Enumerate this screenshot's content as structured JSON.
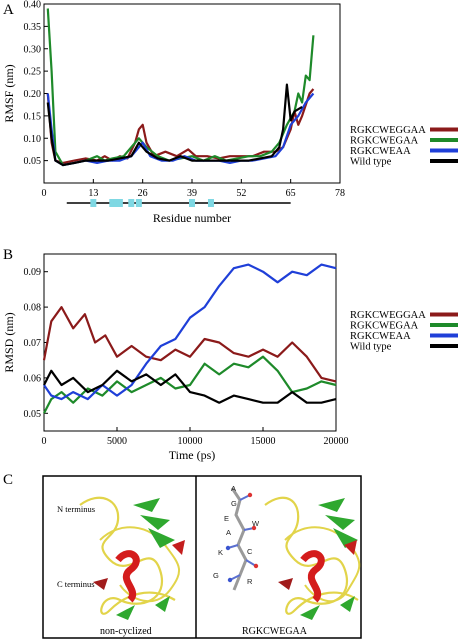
{
  "panels": {
    "a_letter": "A",
    "b_letter": "B",
    "c_letter": "C"
  },
  "colors": {
    "RGKCWEGGAA": "#8b1a1a",
    "RGKCWEGAA": "#1e8a2a",
    "RGKCWEAA": "#1f3fd8",
    "Wild type": "#000000",
    "secondary_marker": "#7fd8e3"
  },
  "chart_data": [
    {
      "type": "line",
      "panel": "A",
      "ylabel": "RMSF (nm)",
      "xlabel": "Residue number",
      "xlim": [
        0,
        78
      ],
      "ylim": [
        0,
        0.4
      ],
      "xticks": [
        "0",
        "13",
        "26",
        "39",
        "52",
        "65",
        "78"
      ],
      "yticks": [
        "0.05",
        "0.10",
        "0.15",
        "0.20",
        "0.25",
        "0.30",
        "0.35",
        "0.40"
      ],
      "legend_placement": "right",
      "series": [
        {
          "name": "RGKCWEGGAA",
          "color": "#8b1a1a",
          "points": [
            [
              1,
              0.2
            ],
            [
              2,
              0.09
            ],
            [
              3,
              0.05
            ],
            [
              5,
              0.045
            ],
            [
              8,
              0.05
            ],
            [
              11,
              0.055
            ],
            [
              14,
              0.05
            ],
            [
              16,
              0.06
            ],
            [
              18,
              0.05
            ],
            [
              20,
              0.06
            ],
            [
              22,
              0.055
            ],
            [
              24,
              0.09
            ],
            [
              25,
              0.12
            ],
            [
              26,
              0.13
            ],
            [
              27,
              0.09
            ],
            [
              29,
              0.06
            ],
            [
              32,
              0.07
            ],
            [
              35,
              0.06
            ],
            [
              38,
              0.075
            ],
            [
              40,
              0.06
            ],
            [
              43,
              0.06
            ],
            [
              46,
              0.055
            ],
            [
              49,
              0.06
            ],
            [
              52,
              0.06
            ],
            [
              55,
              0.06
            ],
            [
              58,
              0.07
            ],
            [
              61,
              0.07
            ],
            [
              63,
              0.08
            ],
            [
              65,
              0.12
            ],
            [
              66,
              0.16
            ],
            [
              67,
              0.13
            ],
            [
              68,
              0.15
            ],
            [
              70,
              0.2
            ],
            [
              71,
              0.21
            ]
          ]
        },
        {
          "name": "RGKCWEGAA",
          "color": "#1e8a2a",
          "points": [
            [
              1,
              0.39
            ],
            [
              2,
              0.25
            ],
            [
              3,
              0.07
            ],
            [
              5,
              0.04
            ],
            [
              8,
              0.045
            ],
            [
              11,
              0.05
            ],
            [
              14,
              0.06
            ],
            [
              16,
              0.05
            ],
            [
              18,
              0.055
            ],
            [
              21,
              0.06
            ],
            [
              23,
              0.08
            ],
            [
              25,
              0.1
            ],
            [
              27,
              0.08
            ],
            [
              30,
              0.06
            ],
            [
              33,
              0.05
            ],
            [
              36,
              0.055
            ],
            [
              39,
              0.06
            ],
            [
              42,
              0.05
            ],
            [
              45,
              0.06
            ],
            [
              48,
              0.05
            ],
            [
              51,
              0.055
            ],
            [
              54,
              0.06
            ],
            [
              57,
              0.06
            ],
            [
              60,
              0.07
            ],
            [
              62,
              0.09
            ],
            [
              64,
              0.13
            ],
            [
              66,
              0.16
            ],
            [
              67,
              0.2
            ],
            [
              68,
              0.18
            ],
            [
              69,
              0.24
            ],
            [
              70,
              0.23
            ],
            [
              71,
              0.33
            ]
          ]
        },
        {
          "name": "RGKCWEAA",
          "color": "#1f3fd8",
          "points": [
            [
              1,
              0.2
            ],
            [
              2,
              0.12
            ],
            [
              3,
              0.05
            ],
            [
              5,
              0.04
            ],
            [
              8,
              0.045
            ],
            [
              11,
              0.05
            ],
            [
              14,
              0.045
            ],
            [
              17,
              0.05
            ],
            [
              20,
              0.05
            ],
            [
              23,
              0.06
            ],
            [
              25,
              0.08
            ],
            [
              26,
              0.09
            ],
            [
              28,
              0.06
            ],
            [
              31,
              0.05
            ],
            [
              34,
              0.05
            ],
            [
              37,
              0.06
            ],
            [
              40,
              0.05
            ],
            [
              43,
              0.05
            ],
            [
              46,
              0.05
            ],
            [
              49,
              0.045
            ],
            [
              52,
              0.05
            ],
            [
              55,
              0.05
            ],
            [
              58,
              0.055
            ],
            [
              61,
              0.06
            ],
            [
              63,
              0.08
            ],
            [
              65,
              0.13
            ],
            [
              67,
              0.15
            ],
            [
              69,
              0.18
            ],
            [
              71,
              0.2
            ]
          ]
        },
        {
          "name": "Wild type",
          "color": "#000000",
          "points": [
            [
              1,
              0.18
            ],
            [
              2,
              0.1
            ],
            [
              3,
              0.05
            ],
            [
              5,
              0.04
            ],
            [
              8,
              0.045
            ],
            [
              11,
              0.05
            ],
            [
              14,
              0.05
            ],
            [
              17,
              0.05
            ],
            [
              20,
              0.055
            ],
            [
              23,
              0.06
            ],
            [
              25,
              0.09
            ],
            [
              27,
              0.07
            ],
            [
              30,
              0.055
            ],
            [
              33,
              0.05
            ],
            [
              36,
              0.06
            ],
            [
              39,
              0.05
            ],
            [
              42,
              0.05
            ],
            [
              45,
              0.05
            ],
            [
              48,
              0.05
            ],
            [
              51,
              0.05
            ],
            [
              54,
              0.05
            ],
            [
              57,
              0.055
            ],
            [
              60,
              0.06
            ],
            [
              62,
              0.08
            ],
            [
              63,
              0.12
            ],
            [
              64,
              0.22
            ],
            [
              65,
              0.14
            ],
            [
              66,
              0.16
            ],
            [
              68,
              0.17
            ]
          ]
        }
      ],
      "residue_bar": {
        "range": [
          6,
          65
        ],
        "markers": [
          13,
          18,
          19,
          20,
          23,
          25,
          39,
          44
        ]
      }
    },
    {
      "type": "line",
      "panel": "B",
      "ylabel": "RMSD (nm)",
      "xlabel": "Time (ps)",
      "xlim": [
        0,
        20000
      ],
      "ylim": [
        0.045,
        0.095
      ],
      "xticks": [
        "0",
        "5000",
        "10000",
        "15000",
        "20000"
      ],
      "yticks": [
        "0.05",
        "0.06",
        "0.07",
        "0.08",
        "0.09"
      ],
      "legend_placement": "right",
      "series": [
        {
          "name": "RGKCWEGGAA",
          "color": "#8b1a1a",
          "points": [
            [
              0,
              0.065
            ],
            [
              500,
              0.076
            ],
            [
              1200,
              0.08
            ],
            [
              2000,
              0.074
            ],
            [
              2800,
              0.078
            ],
            [
              3500,
              0.07
            ],
            [
              4200,
              0.072
            ],
            [
              5000,
              0.066
            ],
            [
              6000,
              0.069
            ],
            [
              7000,
              0.066
            ],
            [
              8000,
              0.065
            ],
            [
              9000,
              0.068
            ],
            [
              10000,
              0.066
            ],
            [
              11000,
              0.071
            ],
            [
              12000,
              0.07
            ],
            [
              13000,
              0.067
            ],
            [
              14000,
              0.066
            ],
            [
              15000,
              0.068
            ],
            [
              16000,
              0.066
            ],
            [
              17000,
              0.07
            ],
            [
              18000,
              0.066
            ],
            [
              19000,
              0.06
            ],
            [
              20000,
              0.059
            ]
          ]
        },
        {
          "name": "RGKCWEGAA",
          "color": "#1e8a2a",
          "points": [
            [
              0,
              0.05
            ],
            [
              500,
              0.054
            ],
            [
              1200,
              0.056
            ],
            [
              2000,
              0.053
            ],
            [
              3000,
              0.057
            ],
            [
              4000,
              0.055
            ],
            [
              5000,
              0.059
            ],
            [
              6000,
              0.056
            ],
            [
              7000,
              0.058
            ],
            [
              8000,
              0.06
            ],
            [
              9000,
              0.057
            ],
            [
              10000,
              0.058
            ],
            [
              11000,
              0.064
            ],
            [
              12000,
              0.061
            ],
            [
              13000,
              0.064
            ],
            [
              14000,
              0.063
            ],
            [
              15000,
              0.066
            ],
            [
              16000,
              0.062
            ],
            [
              17000,
              0.056
            ],
            [
              18000,
              0.057
            ],
            [
              19000,
              0.059
            ],
            [
              20000,
              0.058
            ]
          ]
        },
        {
          "name": "RGKCWEAA",
          "color": "#1f3fd8",
          "points": [
            [
              0,
              0.058
            ],
            [
              500,
              0.055
            ],
            [
              1200,
              0.054
            ],
            [
              2000,
              0.056
            ],
            [
              3000,
              0.054
            ],
            [
              4000,
              0.058
            ],
            [
              5000,
              0.055
            ],
            [
              6000,
              0.058
            ],
            [
              7000,
              0.064
            ],
            [
              8000,
              0.069
            ],
            [
              9000,
              0.071
            ],
            [
              10000,
              0.077
            ],
            [
              11000,
              0.08
            ],
            [
              12000,
              0.086
            ],
            [
              13000,
              0.091
            ],
            [
              14000,
              0.092
            ],
            [
              15000,
              0.09
            ],
            [
              16000,
              0.087
            ],
            [
              17000,
              0.09
            ],
            [
              18000,
              0.089
            ],
            [
              19000,
              0.092
            ],
            [
              20000,
              0.091
            ]
          ]
        },
        {
          "name": "Wild type",
          "color": "#000000",
          "points": [
            [
              0,
              0.058
            ],
            [
              500,
              0.062
            ],
            [
              1200,
              0.058
            ],
            [
              2000,
              0.06
            ],
            [
              3000,
              0.056
            ],
            [
              4000,
              0.058
            ],
            [
              5000,
              0.062
            ],
            [
              6000,
              0.059
            ],
            [
              7000,
              0.061
            ],
            [
              8000,
              0.058
            ],
            [
              9000,
              0.061
            ],
            [
              10000,
              0.056
            ],
            [
              11000,
              0.055
            ],
            [
              12000,
              0.053
            ],
            [
              13000,
              0.055
            ],
            [
              14000,
              0.054
            ],
            [
              15000,
              0.053
            ],
            [
              16000,
              0.053
            ],
            [
              17000,
              0.056
            ],
            [
              18000,
              0.053
            ],
            [
              19000,
              0.053
            ],
            [
              20000,
              0.054
            ]
          ]
        }
      ]
    }
  ],
  "structures": {
    "left": {
      "n_label": "N terminus",
      "c_label": "C terminus",
      "caption": "non-cyclized"
    },
    "right": {
      "caption": "RGKCWEGAA",
      "residue_letters": [
        "A",
        "G",
        "E",
        "W",
        "A",
        "K",
        "C",
        "G",
        "R"
      ]
    }
  }
}
